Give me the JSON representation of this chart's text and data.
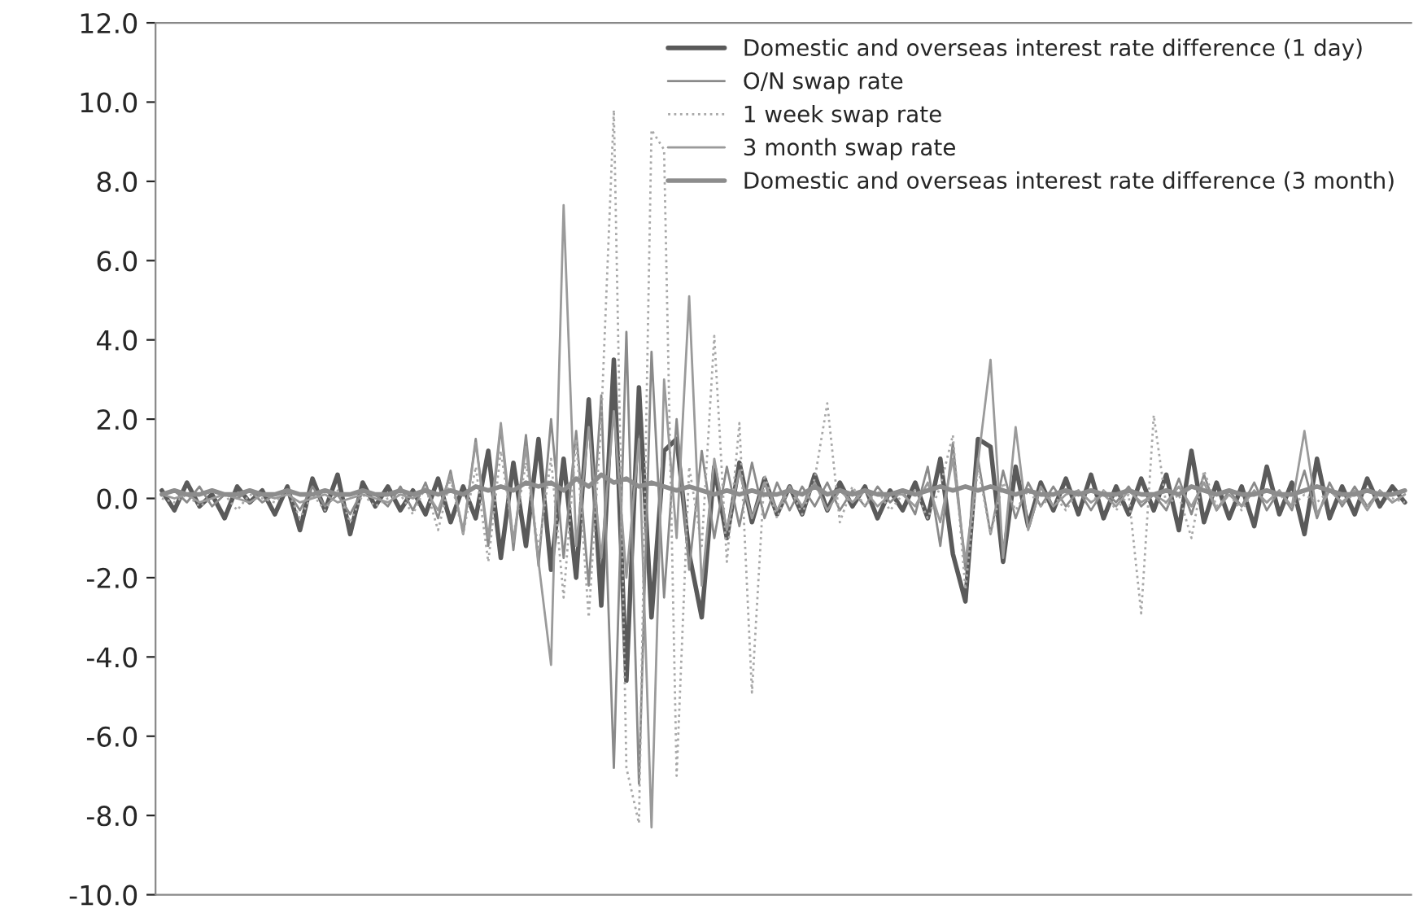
{
  "chart_data": {
    "type": "line",
    "categories": [
      null,
      null,
      null,
      null,
      null,
      null,
      null,
      null,
      null,
      null,
      null,
      null,
      null,
      null,
      null,
      null,
      null,
      null,
      null,
      null,
      null,
      null,
      null,
      null,
      null,
      null,
      null,
      null,
      null,
      null,
      null,
      null,
      null,
      null,
      null,
      null,
      null,
      null,
      null,
      null,
      null,
      null,
      null,
      null,
      null,
      null,
      null,
      null,
      null,
      null,
      null,
      null,
      null,
      null,
      null,
      null,
      null,
      null,
      null,
      null,
      null,
      null,
      null,
      null,
      null,
      null,
      null,
      null,
      null,
      null,
      null,
      null,
      null,
      null,
      null,
      null,
      null,
      null,
      null,
      null,
      null,
      null,
      null,
      null,
      null,
      null,
      null,
      null,
      null,
      null,
      null,
      null,
      null,
      null,
      null,
      null,
      null,
      null,
      null,
      null
    ],
    "series": [
      {
        "name": "Domestic and overseas interest rate difference (1 day)",
        "color": "#5a5a5a",
        "line_style": "solid",
        "values": [
          0.2,
          -0.3,
          0.4,
          -0.2,
          0.1,
          -0.5,
          0.3,
          -0.1,
          0.2,
          -0.4,
          0.3,
          -0.8,
          0.5,
          -0.3,
          0.6,
          -0.9,
          0.4,
          -0.2,
          0.3,
          -0.3,
          0.2,
          -0.4,
          0.5,
          -0.6,
          0.3,
          -0.5,
          1.2,
          -1.5,
          0.9,
          -1.2,
          1.5,
          -1.8,
          1.0,
          -2.0,
          2.5,
          -2.7,
          3.5,
          -4.6,
          2.8,
          -3.0,
          1.2,
          1.5,
          -1.4,
          -3.0,
          0.8,
          -1.0,
          0.9,
          -0.6,
          0.5,
          -0.4,
          0.3,
          -0.4,
          0.6,
          -0.3,
          0.4,
          -0.2,
          0.3,
          -0.5,
          0.2,
          -0.3,
          0.4,
          -0.5,
          1.0,
          -1.4,
          -2.6,
          1.5,
          1.3,
          -1.6,
          0.8,
          -0.7,
          0.4,
          -0.3,
          0.5,
          -0.4,
          0.6,
          -0.5,
          0.3,
          -0.4,
          0.5,
          -0.3,
          0.6,
          -0.8,
          1.2,
          -0.6,
          0.4,
          -0.5,
          0.3,
          -0.7,
          0.8,
          -0.4,
          0.4,
          -0.9,
          1.0,
          -0.5,
          0.3,
          -0.4,
          0.5,
          -0.2,
          0.3,
          -0.1
        ]
      },
      {
        "name": "O/N swap rate",
        "color": "#8a8a8a",
        "line_style": "solid",
        "values": [
          0.1,
          0.2,
          -0.1,
          0.3,
          -0.2,
          0.1,
          0.0,
          0.2,
          -0.1,
          0.1,
          0.2,
          -0.3,
          0.3,
          -0.2,
          0.1,
          -0.4,
          0.2,
          0.1,
          -0.2,
          0.3,
          -0.3,
          0.4,
          -0.5,
          0.7,
          -0.9,
          1.5,
          -1.2,
          1.8,
          -1.3,
          1.6,
          -1.7,
          2.0,
          -1.5,
          1.7,
          -2.2,
          2.6,
          -6.8,
          4.2,
          -7.2,
          3.7,
          -2.5,
          2.0,
          -1.8,
          1.2,
          -1.0,
          0.8,
          -0.7,
          0.9,
          -0.5,
          0.4,
          -0.3,
          0.3,
          -0.2,
          0.4,
          -0.3,
          0.2,
          -0.2,
          0.3,
          -0.1,
          0.2,
          -0.4,
          0.8,
          -1.2,
          1.4,
          -1.8,
          1.0,
          -0.9,
          0.7,
          -0.5,
          0.4,
          -0.2,
          0.3,
          -0.2,
          0.2,
          -0.3,
          0.2,
          -0.1,
          0.3,
          -0.2,
          0.1,
          -0.3,
          0.5,
          -0.4,
          0.6,
          -0.3,
          0.2,
          -0.2,
          0.4,
          -0.3,
          0.2,
          -0.3,
          0.7,
          -0.5,
          0.4,
          -0.2,
          0.3,
          -0.2,
          0.2,
          -0.1,
          0.1
        ]
      },
      {
        "name": "1 week swap rate",
        "color": "#a8a8a8",
        "line_style": "dotted",
        "values": [
          0.0,
          -0.1,
          0.1,
          -0.2,
          0.0,
          0.1,
          -0.3,
          0.1,
          0.0,
          -0.1,
          0.2,
          -0.5,
          0.1,
          -0.3,
          0.2,
          -0.6,
          0.1,
          -0.2,
          0.0,
          0.1,
          -0.4,
          0.3,
          -0.8,
          0.5,
          -0.9,
          0.8,
          -1.6,
          1.2,
          -1.0,
          0.9,
          -1.3,
          1.0,
          -2.5,
          1.5,
          -3.0,
          2.0,
          9.8,
          -6.8,
          -8.2,
          9.3,
          8.8,
          -7.0,
          0.8,
          -1.2,
          4.1,
          -1.6,
          1.9,
          -4.9,
          0.6,
          -0.5,
          0.3,
          -0.4,
          0.5,
          2.4,
          -0.6,
          0.3,
          -0.2,
          0.2,
          -0.3,
          0.1,
          0.2,
          -0.5,
          0.3,
          1.6,
          -2.3,
          0.8,
          -0.9,
          0.4,
          -0.3,
          0.2,
          -0.2,
          0.1,
          -0.3,
          0.2,
          -0.1,
          0.2,
          -0.3,
          0.1,
          -2.9,
          2.1,
          -0.2,
          0.1,
          -1.0,
          0.7,
          -0.2,
          0.1,
          -0.3,
          0.2,
          -0.1,
          0.1,
          -0.2,
          0.1,
          -0.1,
          0.2,
          -0.1,
          0.1,
          -0.2,
          0.1,
          0.0,
          -0.1
        ]
      },
      {
        "name": "3 month swap rate",
        "color": "#9a9a9a",
        "line_style": "solid",
        "values": [
          0.1,
          0.0,
          0.1,
          -0.1,
          0.0,
          0.1,
          0.0,
          -0.1,
          0.1,
          0.0,
          0.1,
          -0.1,
          0.0,
          0.1,
          -0.1,
          0.0,
          0.1,
          0.0,
          -0.1,
          0.1,
          0.0,
          0.2,
          -0.3,
          0.6,
          -0.8,
          1.4,
          -1.0,
          1.9,
          -1.1,
          1.3,
          -1.6,
          -4.2,
          7.4,
          -1.2,
          1.8,
          -1.5,
          2.2,
          -2.0,
          1.5,
          -8.3,
          3.0,
          -1.0,
          5.1,
          -2.2,
          1.0,
          -0.8,
          0.7,
          -0.5,
          0.4,
          -0.3,
          0.3,
          -0.2,
          0.4,
          -0.3,
          0.2,
          -0.1,
          0.2,
          -0.2,
          0.1,
          0.1,
          -0.2,
          0.4,
          -0.6,
          1.0,
          -1.6,
          0.9,
          3.5,
          -1.5,
          1.8,
          -0.8,
          0.3,
          -0.2,
          0.1,
          0.2,
          -0.1,
          0.1,
          -0.2,
          0.2,
          -0.1,
          0.1,
          -0.1,
          0.3,
          -0.2,
          0.4,
          -0.3,
          0.1,
          -0.2,
          0.2,
          -0.1,
          0.2,
          -0.2,
          1.7,
          -0.4,
          0.2,
          -0.1,
          0.2,
          -0.3,
          0.2,
          -0.1,
          0.1
        ]
      },
      {
        "name": "Domestic and overseas interest rate difference (3 month)",
        "color": "#8c8c8c",
        "line_style": "solid",
        "values": [
          0.1,
          0.2,
          0.1,
          0.1,
          0.2,
          0.1,
          0.1,
          0.2,
          0.1,
          0.1,
          0.2,
          0.1,
          0.1,
          0.2,
          0.1,
          0.1,
          0.2,
          0.1,
          0.1,
          0.2,
          0.1,
          0.2,
          0.1,
          0.2,
          0.1,
          0.3,
          0.2,
          0.3,
          0.2,
          0.4,
          0.3,
          0.4,
          0.2,
          0.5,
          0.3,
          0.6,
          0.4,
          0.5,
          0.3,
          0.4,
          0.3,
          0.2,
          0.3,
          0.2,
          0.1,
          0.2,
          0.1,
          0.2,
          0.1,
          0.1,
          0.2,
          0.1,
          0.3,
          0.1,
          0.2,
          0.1,
          0.2,
          0.1,
          0.1,
          0.2,
          0.1,
          0.2,
          0.3,
          0.2,
          0.3,
          0.2,
          0.3,
          0.2,
          0.1,
          0.2,
          0.1,
          0.1,
          0.2,
          0.1,
          0.2,
          0.1,
          0.1,
          0.2,
          0.1,
          0.1,
          0.2,
          0.1,
          0.3,
          0.2,
          0.1,
          0.2,
          0.1,
          0.1,
          0.2,
          0.1,
          0.1,
          0.2,
          0.3,
          0.2,
          0.1,
          0.1,
          0.2,
          0.1,
          0.1,
          0.2
        ]
      }
    ],
    "ylim": [
      -10,
      12
    ],
    "yticks": [
      {
        "value": -10,
        "label": "-10.0"
      },
      {
        "value": -8,
        "label": "-8.0"
      },
      {
        "value": -6,
        "label": "-6.0"
      },
      {
        "value": -4,
        "label": "-4.0"
      },
      {
        "value": -2,
        "label": "-2.0"
      },
      {
        "value": 0,
        "label": "0.0"
      },
      {
        "value": 2,
        "label": "2.0"
      },
      {
        "value": 4,
        "label": "4.0"
      },
      {
        "value": 6,
        "label": "6.0"
      },
      {
        "value": 8,
        "label": "8.0"
      },
      {
        "value": 10,
        "label": "10.0"
      },
      {
        "value": 12,
        "label": "12.0"
      }
    ],
    "grid": false,
    "legend": "top right",
    "tick_labels": "y"
  }
}
